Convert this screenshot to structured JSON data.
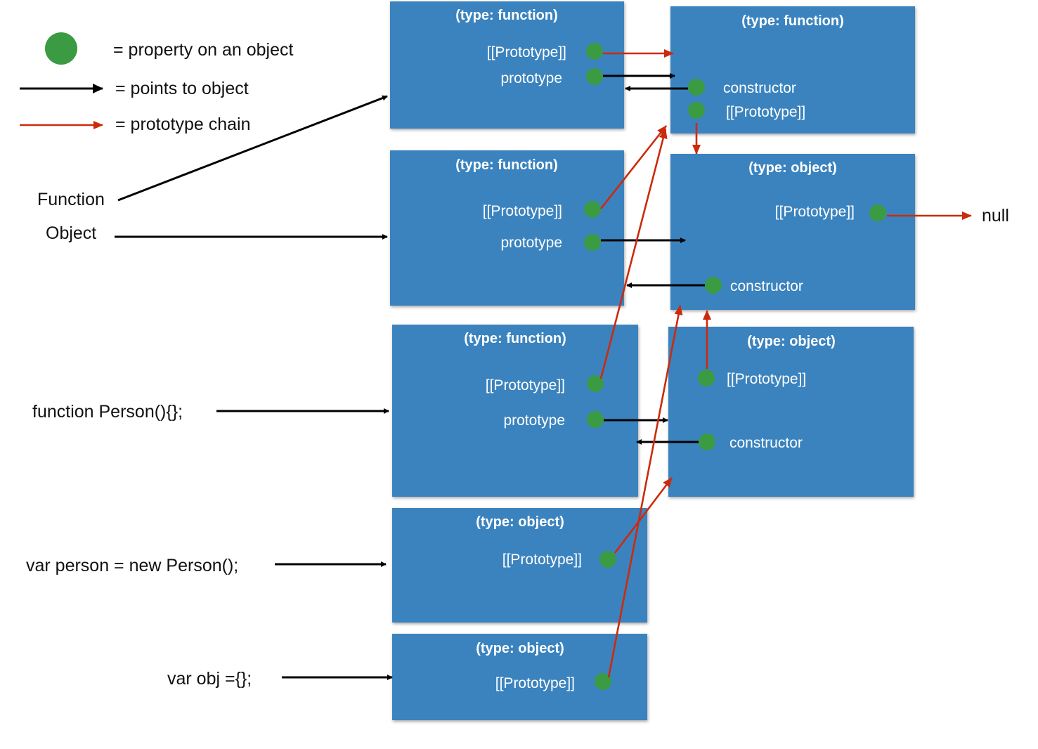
{
  "legend": {
    "property": "= property on an object",
    "points_to": "= points to object",
    "prototype_chain": "= prototype chain"
  },
  "colors": {
    "box": "#3b83be",
    "property_dot": "#3a9b42",
    "points_to_arrow": "#000000",
    "prototype_chain_arrow": "#cc2a0c"
  },
  "left_labels": {
    "function": "Function",
    "object": "Object",
    "person_fn": "function Person(){};",
    "person_var": "var person = new Person();",
    "obj_var": "var obj ={};"
  },
  "null_label": "null",
  "boxes": {
    "function_ctor": {
      "title": "(type: function)",
      "proto_internal": "[[Prototype]]",
      "prototype": "prototype"
    },
    "function_proto": {
      "title": "(type: function)",
      "constructor": "constructor",
      "proto_internal": "[[Prototype]]"
    },
    "object_ctor": {
      "title": "(type: function)",
      "proto_internal": "[[Prototype]]",
      "prototype": "prototype"
    },
    "object_proto": {
      "title": "(type: object)",
      "proto_internal": "[[Prototype]]",
      "constructor": "constructor"
    },
    "person_ctor": {
      "title": "(type: function)",
      "proto_internal": "[[Prototype]]",
      "prototype": "prototype"
    },
    "person_proto": {
      "title": "(type: object)",
      "proto_internal": "[[Prototype]]",
      "constructor": "constructor"
    },
    "person_instance": {
      "title": "(type: object)",
      "proto_internal": "[[Prototype]]"
    },
    "obj_instance": {
      "title": "(type: object)",
      "proto_internal": "[[Prototype]]"
    }
  }
}
